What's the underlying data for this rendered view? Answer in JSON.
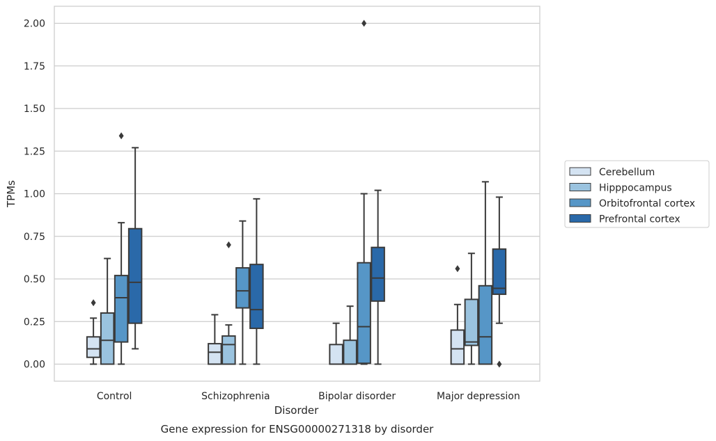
{
  "chart_data": {
    "type": "box",
    "xlabel": "Disorder",
    "ylabel": "TPMs",
    "caption": "Gene expression for ENSG00000271318 by disorder",
    "ylim": [
      -0.1,
      2.1
    ],
    "yticks": [
      "0.00",
      "0.25",
      "0.50",
      "0.75",
      "1.00",
      "1.25",
      "1.50",
      "1.75",
      "2.00"
    ],
    "grid": "horizontal",
    "legend_position": "right",
    "categories": [
      "Control",
      "Schizophrenia",
      "Bipolar disorder",
      "Major depression"
    ],
    "series": [
      {
        "name": "Cerebellum",
        "color": "#d4e3f2",
        "boxes": [
          {
            "min": 0.0,
            "q1": 0.04,
            "median": 0.09,
            "q3": 0.16,
            "max": 0.27,
            "outliers": [
              0.36
            ]
          },
          {
            "min": 0.0,
            "q1": 0.0,
            "median": 0.07,
            "q3": 0.12,
            "max": 0.29,
            "outliers": []
          },
          {
            "min": 0.0,
            "q1": 0.0,
            "median": 0.0,
            "q3": 0.115,
            "max": 0.24,
            "outliers": []
          },
          {
            "min": 0.0,
            "q1": 0.0,
            "median": 0.09,
            "q3": 0.2,
            "max": 0.35,
            "outliers": [
              0.56
            ]
          }
        ]
      },
      {
        "name": "Hipppocampus",
        "color": "#9ac3df",
        "boxes": [
          {
            "min": 0.0,
            "q1": 0.0,
            "median": 0.14,
            "q3": 0.3,
            "max": 0.62,
            "outliers": []
          },
          {
            "min": 0.0,
            "q1": 0.0,
            "median": 0.115,
            "q3": 0.165,
            "max": 0.23,
            "outliers": [
              0.7
            ]
          },
          {
            "min": 0.0,
            "q1": 0.0,
            "median": 0.0,
            "q3": 0.14,
            "max": 0.34,
            "outliers": []
          },
          {
            "min": 0.0,
            "q1": 0.11,
            "median": 0.13,
            "q3": 0.38,
            "max": 0.65,
            "outliers": []
          }
        ]
      },
      {
        "name": "Orbitofrontal cortex",
        "color": "#5696c7",
        "boxes": [
          {
            "min": 0.0,
            "q1": 0.13,
            "median": 0.39,
            "q3": 0.52,
            "max": 0.83,
            "outliers": [
              1.34
            ]
          },
          {
            "min": 0.0,
            "q1": 0.33,
            "median": 0.43,
            "q3": 0.565,
            "max": 0.84,
            "outliers": []
          },
          {
            "min": 0.0,
            "q1": 0.005,
            "median": 0.22,
            "q3": 0.595,
            "max": 1.0,
            "outliers": [
              2.0
            ]
          },
          {
            "min": 0.0,
            "q1": 0.0,
            "median": 0.16,
            "q3": 0.46,
            "max": 1.07,
            "outliers": []
          }
        ]
      },
      {
        "name": "Prefrontal cortex",
        "color": "#2a69a9",
        "boxes": [
          {
            "min": 0.09,
            "q1": 0.24,
            "median": 0.48,
            "q3": 0.795,
            "max": 1.27,
            "outliers": []
          },
          {
            "min": 0.0,
            "q1": 0.21,
            "median": 0.32,
            "q3": 0.585,
            "max": 0.97,
            "outliers": []
          },
          {
            "min": 0.0,
            "q1": 0.37,
            "median": 0.505,
            "q3": 0.685,
            "max": 1.02,
            "outliers": []
          },
          {
            "min": 0.24,
            "q1": 0.41,
            "median": 0.445,
            "q3": 0.675,
            "max": 0.98,
            "outliers": [
              0.0
            ]
          }
        ]
      }
    ]
  }
}
